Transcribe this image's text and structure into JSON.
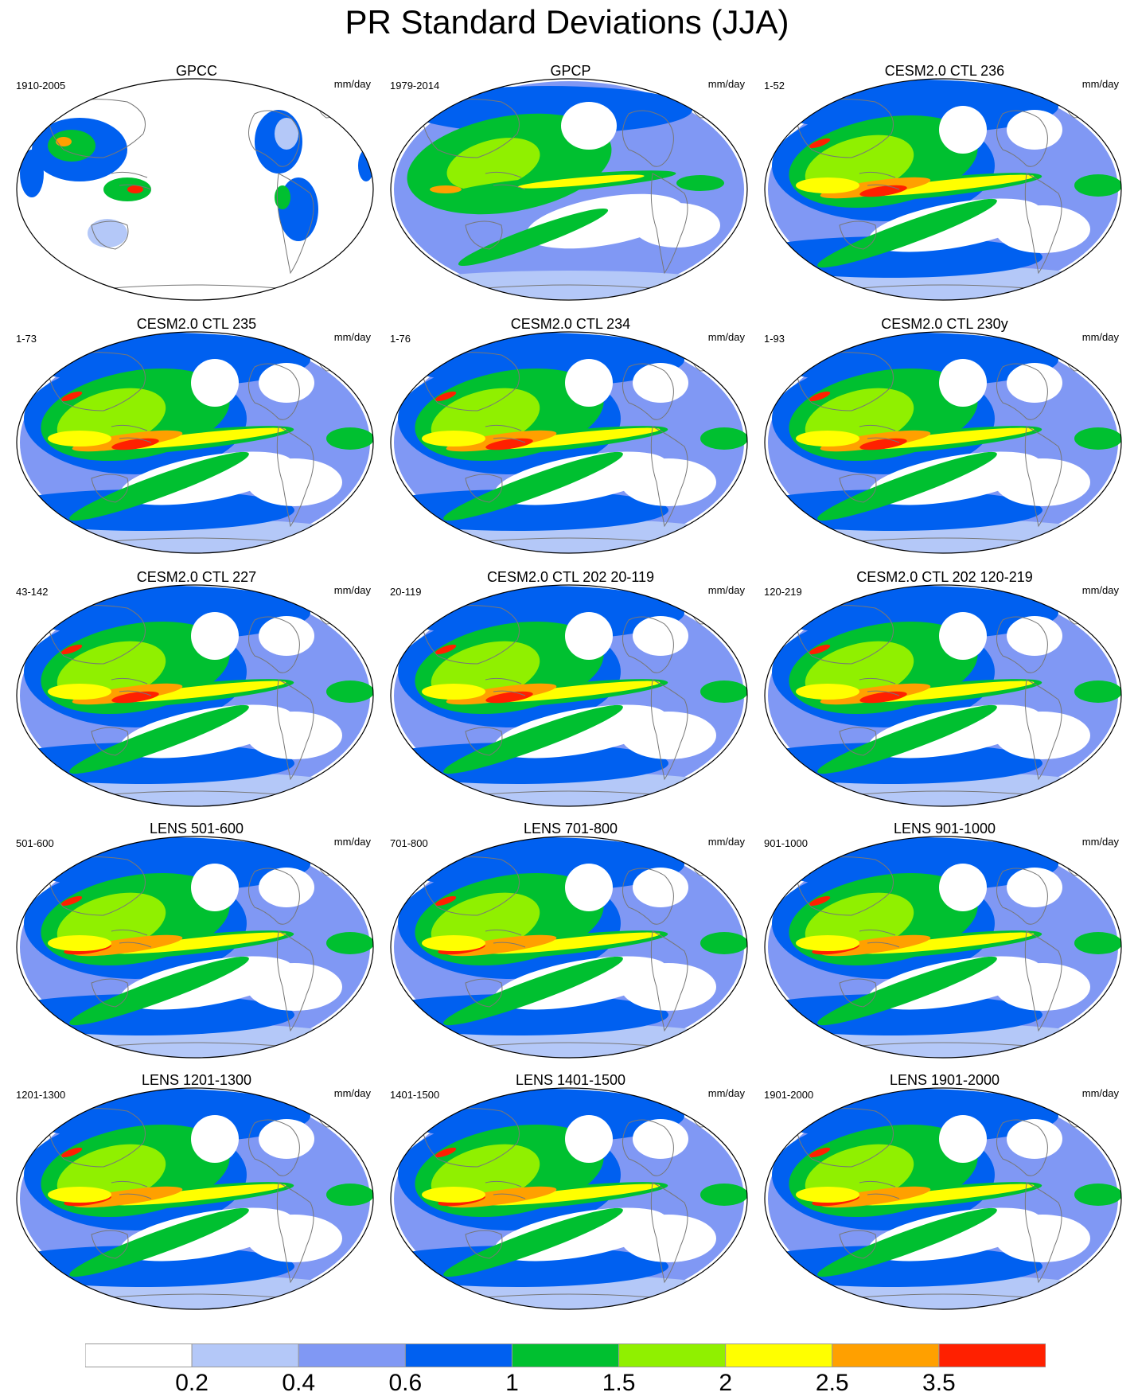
{
  "title": "PR Standard Deviations (JJA)",
  "units": "mm/day",
  "panels": [
    {
      "title": "GPCC",
      "period": "1910-2005",
      "pattern": "obs_land"
    },
    {
      "title": "GPCP",
      "period": "1979-2014",
      "pattern": "obs"
    },
    {
      "title": "CESM2.0 CTL 236",
      "period": "1-52",
      "pattern": "model"
    },
    {
      "title": "CESM2.0 CTL 235",
      "period": "1-73",
      "pattern": "model"
    },
    {
      "title": "CESM2.0 CTL 234",
      "period": "1-76",
      "pattern": "model"
    },
    {
      "title": "CESM2.0 CTL 230y",
      "period": "1-93",
      "pattern": "model"
    },
    {
      "title": "CESM2.0 CTL 227",
      "period": "43-142",
      "pattern": "model"
    },
    {
      "title": "CESM2.0 CTL 202 20-119",
      "period": "20-119",
      "pattern": "model"
    },
    {
      "title": "CESM2.0 CTL 202 120-219",
      "period": "120-219",
      "pattern": "model"
    },
    {
      "title": "LENS 501-600",
      "period": "501-600",
      "pattern": "lens"
    },
    {
      "title": "LENS 701-800",
      "period": "701-800",
      "pattern": "lens"
    },
    {
      "title": "LENS 901-1000",
      "period": "901-1000",
      "pattern": "lens"
    },
    {
      "title": "LENS 1201-1300",
      "period": "1201-1300",
      "pattern": "lens"
    },
    {
      "title": "LENS 1401-1500",
      "period": "1401-1500",
      "pattern": "lens"
    },
    {
      "title": "LENS 1901-2000",
      "period": "1901-2000",
      "pattern": "lens"
    }
  ],
  "colorbar": {
    "colors": [
      "#ffffff",
      "#b4c8f8",
      "#8098f4",
      "#0060f0",
      "#00c030",
      "#90f000",
      "#ffff00",
      "#ffa000",
      "#ff2000"
    ],
    "labels": [
      "0.2",
      "0.4",
      "0.6",
      "1",
      "1.5",
      "2",
      "2.5",
      "3.5"
    ]
  }
}
